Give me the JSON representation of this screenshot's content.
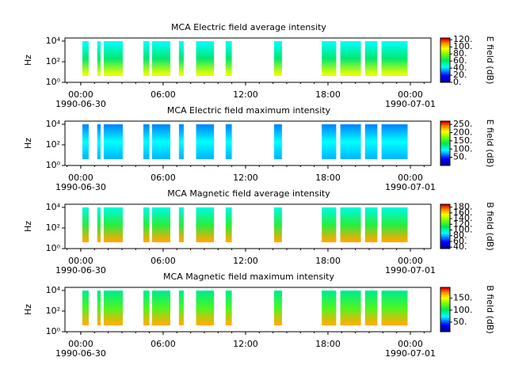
{
  "chart_data": [
    {
      "type": "spectrogram",
      "title": "MCA  Electric field average intensity",
      "ylabel": "Hz",
      "yscale": "log",
      "ylim": [
        1,
        20000
      ],
      "yticks": [
        {
          "value": 1,
          "label": "10⁰"
        },
        {
          "value": 100,
          "label": "10²"
        },
        {
          "value": 10000,
          "label": "10⁴"
        }
      ],
      "xlim": [
        -1.15,
        25.5
      ],
      "xticks": [
        {
          "value": 0,
          "label": "00:00"
        },
        {
          "value": 6,
          "label": "06:00"
        },
        {
          "value": 12,
          "label": "12:00"
        },
        {
          "value": 18,
          "label": "18:00"
        },
        {
          "value": 24,
          "label": "00:00"
        }
      ],
      "xtick_dates": [
        {
          "value": 0,
          "label": "1990-06-30"
        },
        {
          "value": 24,
          "label": "1990-07-01"
        }
      ],
      "segments": [
        [
          0.12,
          0.58
        ],
        [
          1.2,
          1.45
        ],
        [
          1.67,
          3.06
        ],
        [
          4.56,
          5.0
        ],
        [
          5.19,
          6.52
        ],
        [
          7.15,
          7.5
        ],
        [
          8.4,
          9.7
        ],
        [
          10.55,
          11.0
        ],
        [
          14.08,
          14.65
        ],
        [
          17.55,
          18.6
        ],
        [
          18.9,
          20.4
        ],
        [
          20.7,
          21.6
        ],
        [
          21.9,
          23.8
        ]
      ],
      "band_values": [
        95,
        60,
        45
      ],
      "clabel": "E field (dB)",
      "clim": [
        0,
        125
      ],
      "cticks": [
        {
          "value": 0,
          "label": "0."
        },
        {
          "value": 20,
          "label": "20."
        },
        {
          "value": 40,
          "label": "40."
        },
        {
          "value": 60,
          "label": "60."
        },
        {
          "value": 80,
          "label": "80."
        },
        {
          "value": 100,
          "label": "100."
        },
        {
          "value": 120,
          "label": "120."
        }
      ]
    },
    {
      "type": "spectrogram",
      "title": "MCA  Electric field maximum intensity",
      "ylabel": "Hz",
      "yscale": "log",
      "ylim": [
        1,
        20000
      ],
      "yticks": [
        {
          "value": 1,
          "label": "10⁰"
        },
        {
          "value": 100,
          "label": "10²"
        },
        {
          "value": 10000,
          "label": "10⁴"
        }
      ],
      "xlim": [
        -1.15,
        25.5
      ],
      "xticks": [
        {
          "value": 0,
          "label": "00:00"
        },
        {
          "value": 6,
          "label": "06:00"
        },
        {
          "value": 12,
          "label": "12:00"
        },
        {
          "value": 18,
          "label": "18:00"
        },
        {
          "value": 24,
          "label": "00:00"
        }
      ],
      "xtick_dates": [
        {
          "value": 0,
          "label": "1990-06-30"
        },
        {
          "value": 24,
          "label": "1990-07-01"
        }
      ],
      "segments": [
        [
          0.12,
          0.58
        ],
        [
          1.2,
          1.45
        ],
        [
          1.67,
          3.06
        ],
        [
          4.56,
          5.0
        ],
        [
          5.19,
          6.52
        ],
        [
          7.15,
          7.5
        ],
        [
          8.4,
          9.7
        ],
        [
          10.55,
          11.0
        ],
        [
          14.08,
          14.65
        ],
        [
          17.55,
          18.6
        ],
        [
          18.9,
          20.4
        ],
        [
          20.7,
          21.6
        ],
        [
          21.9,
          23.8
        ]
      ],
      "band_values": [
        80,
        95,
        70
      ],
      "clabel": "E field (dB)",
      "clim": [
        0,
        270
      ],
      "cticks": [
        {
          "value": 50,
          "label": "50."
        },
        {
          "value": 100,
          "label": "100."
        },
        {
          "value": 150,
          "label": "150."
        },
        {
          "value": 200,
          "label": "200."
        },
        {
          "value": 250,
          "label": "250."
        }
      ]
    },
    {
      "type": "spectrogram",
      "title": "MCA  Magnetic field average intensity",
      "ylabel": "Hz",
      "yscale": "log",
      "ylim": [
        1,
        20000
      ],
      "yticks": [
        {
          "value": 1,
          "label": "10⁰"
        },
        {
          "value": 100,
          "label": "10²"
        },
        {
          "value": 10000,
          "label": "10⁴"
        }
      ],
      "xlim": [
        -1.15,
        25.5
      ],
      "xticks": [
        {
          "value": 0,
          "label": "00:00"
        },
        {
          "value": 6,
          "label": "06:00"
        },
        {
          "value": 12,
          "label": "12:00"
        },
        {
          "value": 18,
          "label": "18:00"
        },
        {
          "value": 24,
          "label": "00:00"
        }
      ],
      "xtick_dates": [
        {
          "value": 0,
          "label": "1990-06-30"
        },
        {
          "value": 24,
          "label": "1990-07-01"
        }
      ],
      "segments": [
        [
          0.12,
          0.58
        ],
        [
          1.2,
          1.45
        ],
        [
          1.67,
          3.06
        ],
        [
          4.56,
          5.0
        ],
        [
          5.19,
          6.52
        ],
        [
          7.15,
          7.5
        ],
        [
          8.4,
          9.7
        ],
        [
          10.55,
          11.0
        ],
        [
          14.08,
          14.65
        ],
        [
          17.55,
          18.6
        ],
        [
          18.9,
          20.4
        ],
        [
          20.7,
          21.6
        ],
        [
          21.9,
          23.8
        ]
      ],
      "band_values": [
        170,
        120,
        95
      ],
      "clabel": "B field (dB)",
      "clim": [
        35,
        190
      ],
      "cticks": [
        {
          "value": 40,
          "label": "40."
        },
        {
          "value": 60,
          "label": "60."
        },
        {
          "value": 80,
          "label": "80."
        },
        {
          "value": 100,
          "label": "100."
        },
        {
          "value": 120,
          "label": "120."
        },
        {
          "value": 140,
          "label": "140."
        },
        {
          "value": 160,
          "label": "160."
        },
        {
          "value": 180,
          "label": "180."
        }
      ]
    },
    {
      "type": "spectrogram",
      "title": "MCA  Magnetic field maximum intensity",
      "ylabel": "Hz",
      "yscale": "log",
      "ylim": [
        1,
        20000
      ],
      "yticks": [
        {
          "value": 1,
          "label": "10⁰"
        },
        {
          "value": 100,
          "label": "10²"
        },
        {
          "value": 10000,
          "label": "10⁴"
        }
      ],
      "xlim": [
        -1.15,
        25.5
      ],
      "xticks": [
        {
          "value": 0,
          "label": "00:00"
        },
        {
          "value": 6,
          "label": "06:00"
        },
        {
          "value": 12,
          "label": "12:00"
        },
        {
          "value": 18,
          "label": "18:00"
        },
        {
          "value": 24,
          "label": "00:00"
        }
      ],
      "xtick_dates": [
        {
          "value": 0,
          "label": "1990-06-30"
        },
        {
          "value": 24,
          "label": "1990-07-01"
        }
      ],
      "segments": [
        [
          0.12,
          0.58
        ],
        [
          1.2,
          1.45
        ],
        [
          1.67,
          3.06
        ],
        [
          4.56,
          5.0
        ],
        [
          5.19,
          6.52
        ],
        [
          7.15,
          7.5
        ],
        [
          8.4,
          9.7
        ],
        [
          10.55,
          11.0
        ],
        [
          14.08,
          14.65
        ],
        [
          17.55,
          18.6
        ],
        [
          18.9,
          20.4
        ],
        [
          20.7,
          21.6
        ],
        [
          21.9,
          23.8
        ]
      ],
      "band_values": [
        170,
        120,
        95
      ],
      "clabel": "B field (dB)",
      "clim": [
        10,
        195
      ],
      "cticks": [
        {
          "value": 50,
          "label": "50."
        },
        {
          "value": 100,
          "label": "100."
        },
        {
          "value": 150,
          "label": "150."
        }
      ]
    }
  ]
}
